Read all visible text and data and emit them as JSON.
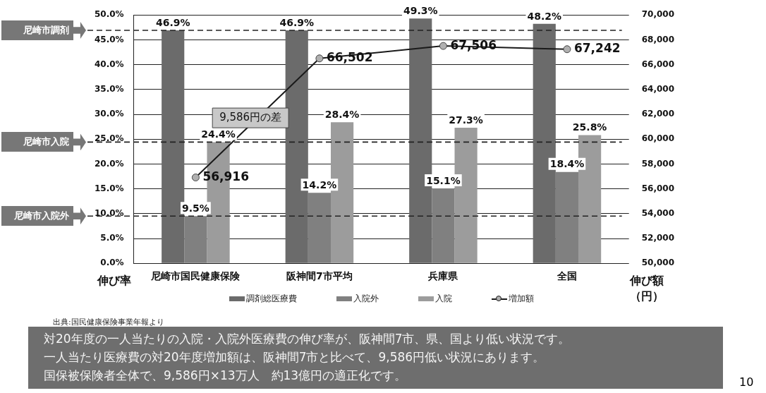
{
  "chart_data": {
    "type": "bar",
    "categories": [
      "尼崎市国民健康保険",
      "阪神間7市平均",
      "兵庫県",
      "全国"
    ],
    "series": [
      {
        "name": "調剤総医療費",
        "color": "#6b6b6b",
        "values": [
          46.9,
          46.9,
          49.3,
          48.2
        ],
        "value_labels": [
          "46.9%",
          "46.9%",
          "49.3%",
          "48.2%"
        ]
      },
      {
        "name": "入院外",
        "color": "#808080",
        "values": [
          9.5,
          14.2,
          15.1,
          18.4
        ],
        "value_labels": [
          "9.5%",
          "14.2%",
          "15.1%",
          "18.4%"
        ]
      },
      {
        "name": "入院",
        "color": "#9c9c9c",
        "values": [
          24.4,
          28.4,
          27.3,
          25.8
        ],
        "value_labels": [
          "24.4%",
          "28.4%",
          "27.3%",
          "25.8%"
        ]
      },
      {
        "name": "増加額",
        "type": "line",
        "axis": "y2",
        "color": "#1a1a1a",
        "marker": "circle",
        "values": [
          56916,
          66502,
          67506,
          67242
        ],
        "value_labels": [
          "56,916",
          "66,502",
          "67,506",
          "67,242"
        ]
      }
    ],
    "ylabel": "伸び率",
    "y2label": "伸び額（円）",
    "ylim": [
      0,
      50
    ],
    "yticks": [
      {
        "value": 0,
        "label": "0.0%"
      },
      {
        "value": 5,
        "label": "5.0%"
      },
      {
        "value": 10,
        "label": "10.0%"
      },
      {
        "value": 15,
        "label": "15.0%"
      },
      {
        "value": 20,
        "label": "20.0%"
      },
      {
        "value": 25,
        "label": "25.0%"
      },
      {
        "value": 30,
        "label": "30.0%"
      },
      {
        "value": 35,
        "label": "35.0%"
      },
      {
        "value": 40,
        "label": "40.0%"
      },
      {
        "value": 45,
        "label": "45.0%"
      },
      {
        "value": 50,
        "label": "50.0%"
      }
    ],
    "y2lim": [
      50000,
      70000
    ],
    "y2ticks": [
      {
        "value": 50000,
        "label": "50,000"
      },
      {
        "value": 52000,
        "label": "52,000"
      },
      {
        "value": 54000,
        "label": "54,000"
      },
      {
        "value": 56000,
        "label": "56,000"
      },
      {
        "value": 58000,
        "label": "58,000"
      },
      {
        "value": 60000,
        "label": "60,000"
      },
      {
        "value": 62000,
        "label": "62,000"
      },
      {
        "value": 64000,
        "label": "64,000"
      },
      {
        "value": 66000,
        "label": "66,000"
      },
      {
        "value": 68000,
        "label": "68,000"
      },
      {
        "value": 70000,
        "label": "70,000"
      }
    ],
    "ref_lines": [
      {
        "axis": "y",
        "value": 46.9,
        "label": "尼崎市調剤",
        "color": "#222222",
        "line_style": "dashed"
      },
      {
        "axis": "y",
        "value": 24.4,
        "label": "尼崎市入院",
        "color": "#222222",
        "line_style": "dashed"
      },
      {
        "axis": "y",
        "value": 9.5,
        "label": "尼崎市入院外",
        "color": "#222222",
        "line_style": "dashed"
      }
    ],
    "annotations": [
      "9,586円の差",
      "出典:国民健康保険事業年報より",
      "対20年度の一人当たりの入院・入院外医療費の伸び率が、阪神間7市、県、国より低い状況です。",
      "一人当たり医療費の対20年度増加額は、阪神間7市と比べて、9,586円低い状況にあります。",
      "国保被保険者全体で、9,586円×13万人　約13億円の適正化です。",
      "10"
    ],
    "grid": "y",
    "legend": "bottom"
  }
}
